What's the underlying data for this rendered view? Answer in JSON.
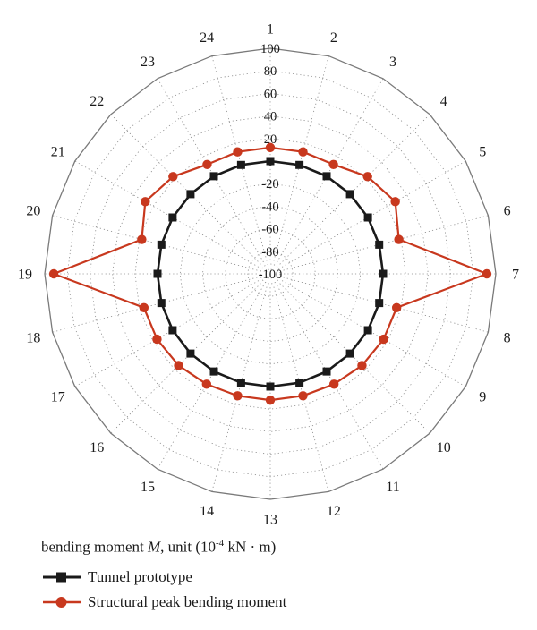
{
  "chart_data": {
    "type": "radar",
    "categories": [
      "1",
      "2",
      "3",
      "4",
      "5",
      "6",
      "7",
      "8",
      "9",
      "10",
      "11",
      "12",
      "13",
      "14",
      "15",
      "16",
      "17",
      "18",
      "19",
      "20",
      "21",
      "22",
      "23",
      "24"
    ],
    "radial_ticks": [
      "100",
      "80",
      "60",
      "40",
      "20",
      "0",
      "-20",
      "-40",
      "-60",
      "-80",
      "-100"
    ],
    "rlim": [
      -100,
      100
    ],
    "series": [
      {
        "name": "Tunnel prototype",
        "color": "#1a1a1a",
        "marker": "square",
        "values": [
          0,
          0,
          0,
          0,
          0,
          0,
          0,
          0,
          0,
          0,
          0,
          0,
          0,
          0,
          0,
          0,
          0,
          0,
          0,
          0,
          0,
          0,
          0,
          0
        ]
      },
      {
        "name": "Structural peak bending moment",
        "color": "#c8381e",
        "marker": "circle",
        "values": [
          12,
          12,
          12,
          22,
          28,
          18,
          92,
          16,
          16,
          15,
          13,
          12,
          12,
          12,
          13,
          15,
          16,
          16,
          92,
          18,
          28,
          22,
          12,
          12
        ]
      }
    ],
    "legend_title": {
      "prefix": "bending moment ",
      "symbol": "M",
      "middle": ", unit (10",
      "exponent": "-4",
      "suffix": " kN · m)"
    },
    "grid": true,
    "legend_position": "bottom-left"
  }
}
